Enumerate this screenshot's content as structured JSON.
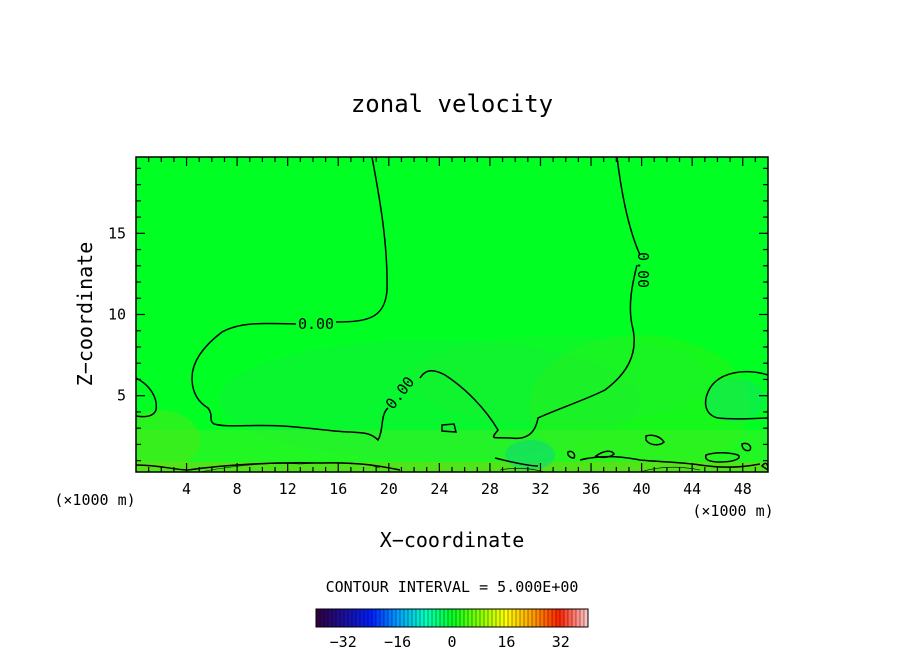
{
  "chart_data": {
    "type": "heatmap",
    "title": "zonal velocity",
    "xlabel": "X−coordinate",
    "ylabel": "Z−coordinate",
    "x_unit_left": "(×1000 m)",
    "x_unit_right": "(×1000 m)",
    "xlim": [
      0,
      50
    ],
    "ylim": [
      0.3,
      19.7
    ],
    "xticks": [
      4,
      8,
      12,
      16,
      20,
      24,
      28,
      32,
      36,
      40,
      44,
      48
    ],
    "yticks": [
      5,
      10,
      15
    ],
    "contour_labels": [
      "0.00",
      "0.00",
      "0.00"
    ],
    "contour_interval_text": "CONTOUR INTERVAL = 5.000E+00",
    "colorbar": {
      "range": [
        -40,
        40
      ],
      "ticks": [
        -32,
        -16,
        0,
        16,
        32
      ],
      "tick_labels": [
        "−32",
        "−16",
        "0",
        "16",
        "32"
      ]
    },
    "field_color_dominant": "#00ff22",
    "contour_color": "#000000"
  }
}
